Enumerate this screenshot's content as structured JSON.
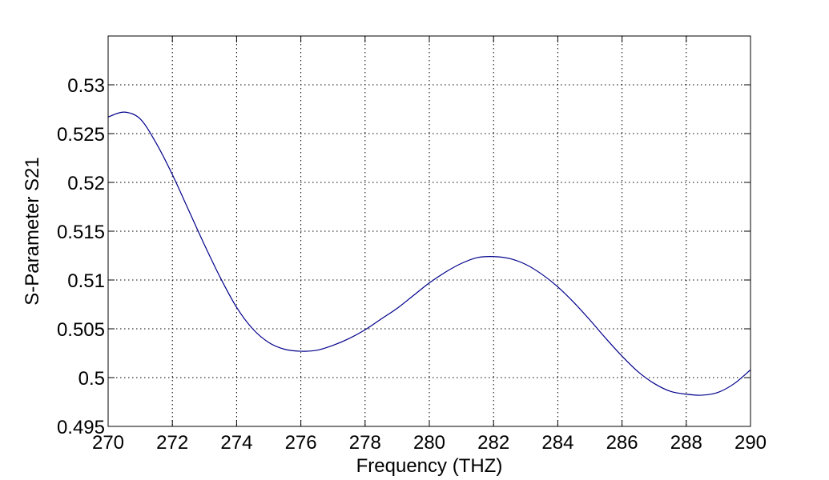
{
  "chart_data": {
    "type": "line",
    "title": "",
    "xlabel": "Frequency (THZ)",
    "ylabel": "S-Parameter S21",
    "xlim": [
      270,
      290
    ],
    "ylim": [
      0.495,
      0.535
    ],
    "xticks": [
      270,
      272,
      274,
      276,
      278,
      280,
      282,
      284,
      286,
      288,
      290
    ],
    "xtick_labels": [
      "270",
      "272",
      "274",
      "276",
      "278",
      "280",
      "282",
      "284",
      "286",
      "288",
      "290"
    ],
    "yticks": [
      0.495,
      0.5,
      0.505,
      0.51,
      0.515,
      0.52,
      0.525,
      0.53
    ],
    "ytick_labels": [
      "0.495",
      "0.5",
      "0.505",
      "0.51",
      "0.515",
      "0.52",
      "0.525",
      "0.53"
    ],
    "grid": true,
    "line_color": "#00008b",
    "series": [
      {
        "x": [
          270,
          270.5,
          271,
          271.5,
          272,
          272.5,
          273,
          273.5,
          274,
          274.5,
          275,
          275.5,
          276,
          276.5,
          277,
          277.5,
          278,
          278.5,
          279,
          279.5,
          280,
          280.5,
          281,
          281.5,
          282,
          282.5,
          283,
          283.5,
          284,
          284.5,
          285,
          285.5,
          286,
          286.5,
          287,
          287.5,
          288,
          288.5,
          289,
          289.5,
          290
        ],
        "y": [
          0.5267,
          0.5272,
          0.5265,
          0.524,
          0.5208,
          0.5172,
          0.5136,
          0.5102,
          0.5072,
          0.505,
          0.5036,
          0.5029,
          0.5027,
          0.5028,
          0.5033,
          0.504,
          0.5049,
          0.506,
          0.5071,
          0.5084,
          0.5097,
          0.5108,
          0.5117,
          0.5123,
          0.5124,
          0.5122,
          0.5116,
          0.5106,
          0.5093,
          0.5077,
          0.5059,
          0.504,
          0.5022,
          0.5006,
          0.4994,
          0.4986,
          0.4983,
          0.4982,
          0.4985,
          0.4994,
          0.5008
        ]
      }
    ]
  }
}
